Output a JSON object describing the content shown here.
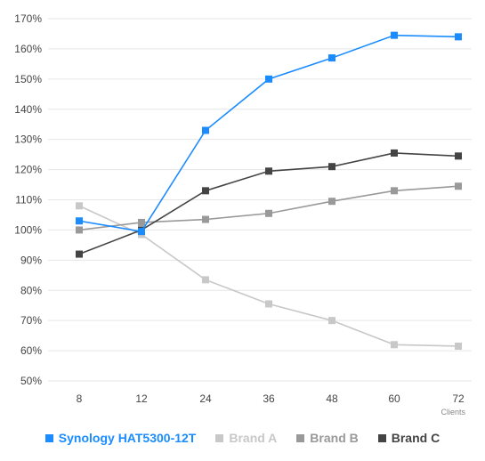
{
  "chart_data": {
    "type": "line",
    "categories": [
      "8",
      "12",
      "24",
      "36",
      "48",
      "60",
      "72"
    ],
    "xlabel": "Clients",
    "ylabel": "",
    "ylim": [
      50,
      170
    ],
    "y_ticks": [
      "50%",
      "60%",
      "70%",
      "80%",
      "90%",
      "100%",
      "110%",
      "120%",
      "130%",
      "140%",
      "150%",
      "160%",
      "170%"
    ],
    "grid": true,
    "legend_position": "bottom",
    "series": [
      {
        "name": "Synology HAT5300-12T",
        "color": "#1a8cff",
        "values": [
          103,
          99.5,
          133,
          150,
          157,
          164.5,
          164
        ]
      },
      {
        "name": "Brand A",
        "color": "#c8c8c8",
        "values": [
          108,
          98.5,
          83.5,
          75.5,
          70,
          62,
          61.5
        ]
      },
      {
        "name": "Brand B",
        "color": "#999999",
        "values": [
          100,
          102.5,
          103.5,
          105.5,
          109.5,
          113,
          114.5
        ]
      },
      {
        "name": "Brand C",
        "color": "#444444",
        "values": [
          92,
          100,
          113,
          119.5,
          121,
          125.5,
          124.5
        ]
      }
    ]
  }
}
